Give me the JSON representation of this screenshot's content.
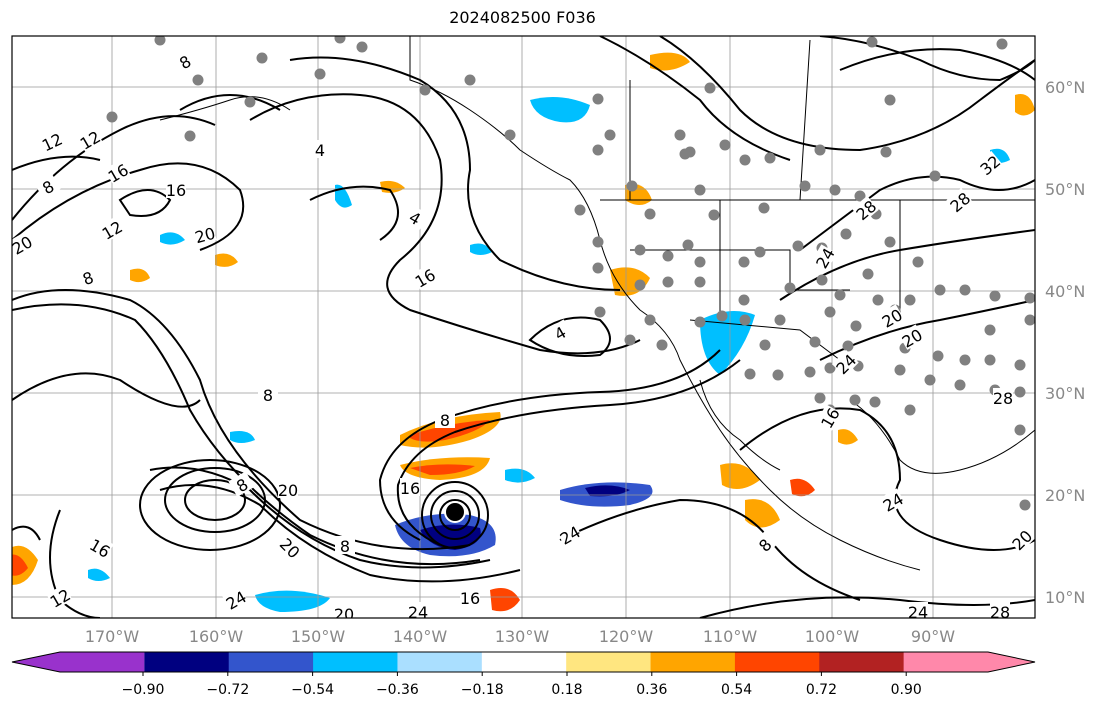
{
  "title": "2024082500 F036",
  "lat_labels": [
    "60°N",
    "50°N",
    "40°N",
    "30°N",
    "20°N",
    "10°N"
  ],
  "lon_labels": [
    "170°W",
    "160°W",
    "150°W",
    "140°W",
    "130°W",
    "120°W",
    "110°W",
    "100°W",
    "90°W"
  ],
  "colorbar": {
    "colors": [
      "#9932cc",
      "#000080",
      "#3355cc",
      "#00bfff",
      "#aadfff",
      "#ffffff",
      "#ffe680",
      "#ffa500",
      "#ff4500",
      "#b22222",
      "#ff88aa"
    ],
    "under_color": "#9932cc",
    "over_color": "#ff88aa",
    "ticks": [
      "−0.90",
      "−0.72",
      "−0.54",
      "−0.36",
      "−0.18",
      "0.18",
      "0.36",
      "0.54",
      "0.72",
      "0.90"
    ]
  },
  "contour_labels": [
    "8",
    "12",
    "12",
    "16",
    "16",
    "20",
    "8",
    "12",
    "8",
    "20",
    "4",
    "4",
    "16",
    "8",
    "4",
    "8",
    "8",
    "16",
    "20",
    "20",
    "24",
    "16",
    "12",
    "24",
    "20",
    "24",
    "16",
    "8",
    "8",
    "24",
    "32",
    "28",
    "28",
    "24",
    "20",
    "20",
    "24",
    "28",
    "16",
    "20",
    "24",
    "28"
  ],
  "hurricane_marker_color": "#000000",
  "station_marker_color": "#808080"
}
